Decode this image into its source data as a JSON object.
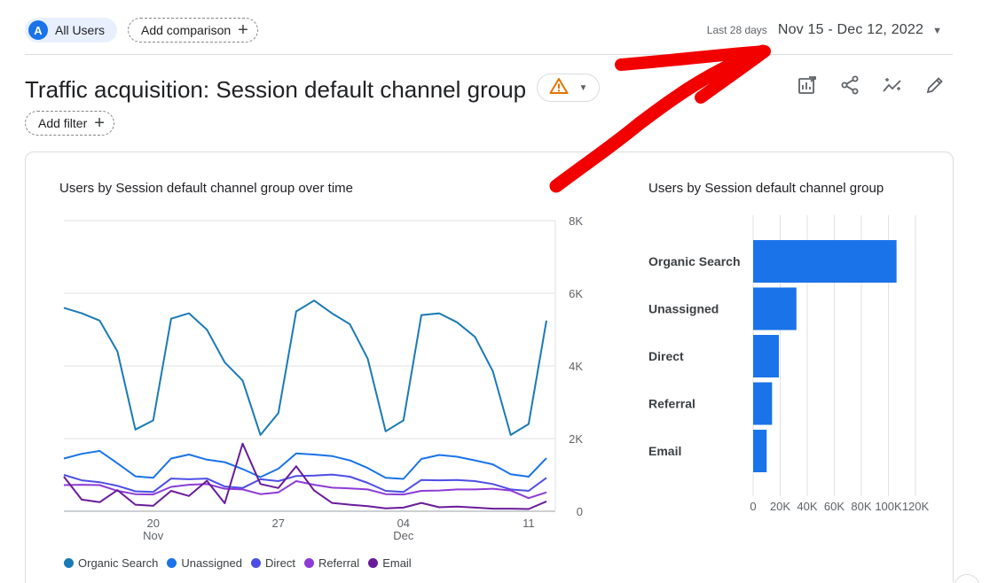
{
  "header": {
    "user_chip": {
      "avatar_letter": "A",
      "label": "All Users"
    },
    "add_comparison_label": "Add comparison",
    "date_range": {
      "preset": "Last 28 days",
      "range": "Nov 15 - Dec 12, 2022"
    }
  },
  "page": {
    "title": "Traffic acquisition: Session default channel group",
    "add_filter_label": "Add filter"
  },
  "toolbar": {
    "icons": [
      "customize-report-icon",
      "share-icon",
      "insights-icon",
      "edit-icon"
    ]
  },
  "colors": {
    "organic_search": "#1a7ab5",
    "unassigned": "#1a73e8",
    "direct": "#4c4ee6",
    "referral": "#8d3bd6",
    "email": "#6a1b9a",
    "bar": "#1a73e8",
    "warning": "#e37400",
    "annotation": "#f20000"
  },
  "chart_data": [
    {
      "type": "line",
      "title": "Users by Session default channel group over time",
      "xlabel": "",
      "ylabel": "",
      "x": [
        "Nov 15",
        "Nov 16",
        "Nov 17",
        "Nov 18",
        "Nov 19",
        "Nov 20",
        "Nov 21",
        "Nov 22",
        "Nov 23",
        "Nov 24",
        "Nov 25",
        "Nov 26",
        "Nov 27",
        "Nov 28",
        "Nov 29",
        "Nov 30",
        "Dec 01",
        "Dec 02",
        "Dec 03",
        "Dec 04",
        "Dec 05",
        "Dec 06",
        "Dec 07",
        "Dec 08",
        "Dec 09",
        "Dec 10",
        "Dec 11",
        "Dec 12"
      ],
      "x_tick_labels": [
        {
          "index": 5,
          "label": "20",
          "sub": "Nov"
        },
        {
          "index": 12,
          "label": "27",
          "sub": ""
        },
        {
          "index": 19,
          "label": "04",
          "sub": "Dec"
        },
        {
          "index": 26,
          "label": "11",
          "sub": ""
        }
      ],
      "ylim": [
        0,
        8000
      ],
      "y_ticks": [
        0,
        2000,
        4000,
        6000,
        8000
      ],
      "y_tick_labels": [
        "0",
        "2K",
        "4K",
        "6K",
        "8K"
      ],
      "y_axis_position": "right",
      "grid": true,
      "legend_position": "bottom-left",
      "series": [
        {
          "name": "Organic Search",
          "color": "#1a7ab5",
          "values": [
            5600,
            5450,
            5250,
            4400,
            2250,
            2500,
            5300,
            5450,
            5000,
            4100,
            3600,
            2100,
            2700,
            5500,
            5800,
            5450,
            5150,
            4200,
            2200,
            2500,
            5400,
            5450,
            5200,
            4800,
            3850,
            2100,
            2400,
            5250
          ]
        },
        {
          "name": "Unassigned",
          "color": "#1a73e8",
          "values": [
            1450,
            1580,
            1660,
            1320,
            960,
            920,
            1450,
            1560,
            1420,
            1350,
            1160,
            940,
            1170,
            1590,
            1560,
            1520,
            1400,
            1190,
            920,
            890,
            1440,
            1550,
            1500,
            1400,
            1290,
            1020,
            950,
            1460
          ]
        },
        {
          "name": "Direct",
          "color": "#4c4ee6",
          "values": [
            1000,
            850,
            800,
            700,
            550,
            530,
            900,
            880,
            900,
            680,
            640,
            880,
            830,
            970,
            980,
            1010,
            950,
            780,
            560,
            530,
            860,
            850,
            860,
            830,
            750,
            600,
            560,
            920
          ]
        },
        {
          "name": "Referral",
          "color": "#8d3bd6",
          "values": [
            720,
            730,
            720,
            560,
            470,
            460,
            670,
            730,
            750,
            620,
            600,
            470,
            520,
            830,
            730,
            650,
            630,
            600,
            470,
            460,
            560,
            570,
            600,
            600,
            620,
            570,
            360,
            520
          ]
        },
        {
          "name": "Email",
          "color": "#6a1b9a",
          "values": [
            950,
            320,
            250,
            580,
            180,
            150,
            560,
            420,
            840,
            220,
            1860,
            750,
            640,
            1240,
            570,
            230,
            180,
            140,
            80,
            100,
            230,
            110,
            130,
            100,
            70,
            70,
            60,
            270
          ]
        }
      ]
    },
    {
      "type": "bar",
      "orientation": "horizontal",
      "title": "Users by Session default channel group",
      "categories": [
        "Organic Search",
        "Unassigned",
        "Direct",
        "Referral",
        "Email"
      ],
      "values": [
        106000,
        32000,
        19000,
        14000,
        10000
      ],
      "xlim": [
        0,
        120000
      ],
      "x_ticks": [
        0,
        20000,
        40000,
        60000,
        80000,
        100000,
        120000
      ],
      "x_tick_labels": [
        "0",
        "20K",
        "40K",
        "60K",
        "80K",
        "100K",
        "120K"
      ],
      "color": "#1a73e8",
      "grid": true
    }
  ]
}
